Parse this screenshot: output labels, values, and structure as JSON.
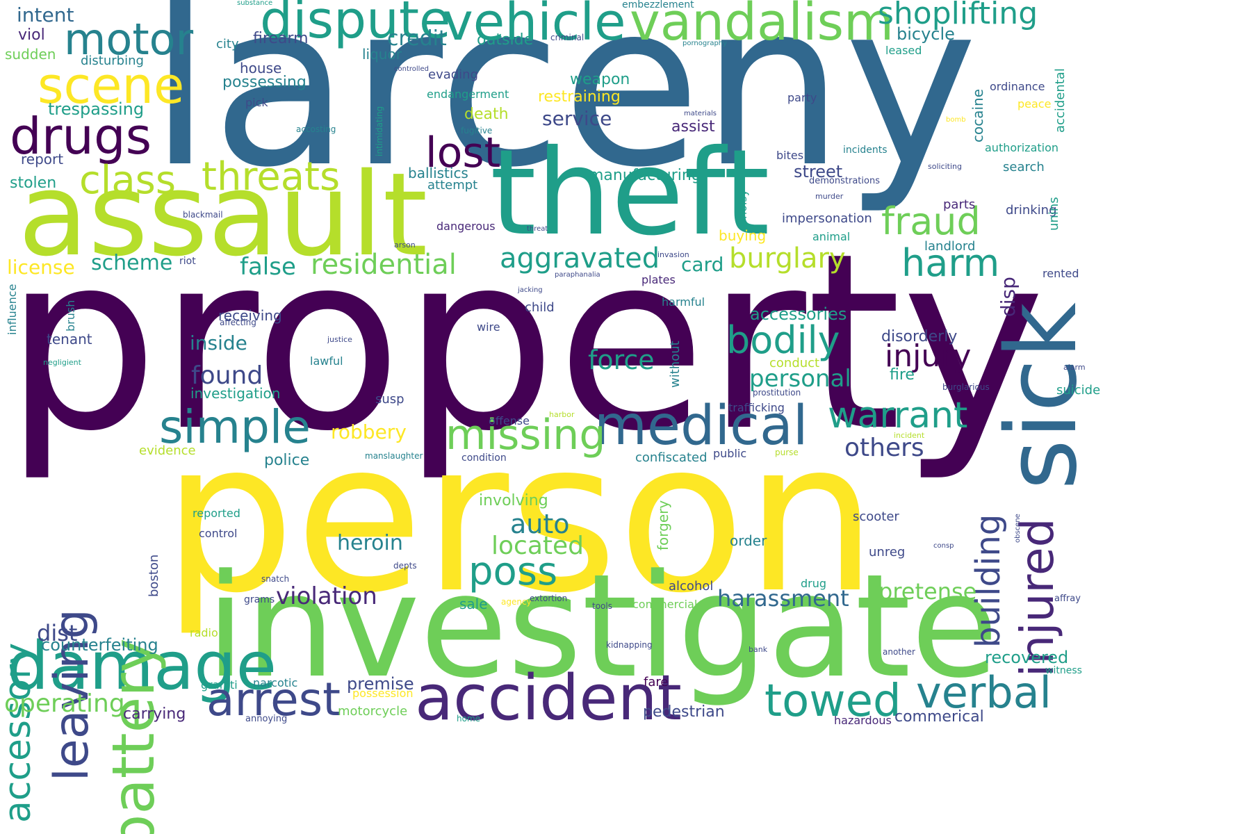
{
  "palette": {
    "dark_purple": "#440154",
    "purple": "#482878",
    "indigo": "#3e4989",
    "blue": "#31688e",
    "teal": "#26828e",
    "green_teal": "#1f9e89",
    "green": "#35b779",
    "lime": "#6ece58",
    "yellow_green": "#b5de2b",
    "yellow": "#fde725"
  },
  "words": [
    "larceny",
    "property",
    "person",
    "investigate",
    "assault",
    "theft",
    "sick",
    "damage",
    "accident",
    "dispute",
    "vehicle",
    "vandalism",
    "shoplifting",
    "motor",
    "scene",
    "drugs",
    "class",
    "threats",
    "lost",
    "simple",
    "medical",
    "missing",
    "poss",
    "battery",
    "leaving",
    "accessory",
    "arrest",
    "towed",
    "verbal",
    "fraud",
    "harm",
    "bodily",
    "injury",
    "injured",
    "building",
    "warrant",
    "others",
    "aggravated",
    "burglary",
    "residential",
    "false",
    "license",
    "scheme",
    "card",
    "personal",
    "found",
    "inside",
    "force",
    "auto",
    "located",
    "heroin",
    "violation",
    "harassment",
    "pretense",
    "dist",
    "counterfeiting",
    "operating",
    "carrying",
    "premise",
    "possession",
    "motorcycle",
    "pedestrian",
    "commerical",
    "hazardous",
    "recovered",
    "fare",
    "narcotic",
    "graffiti",
    "annoying",
    "home",
    "intent",
    "viol",
    "sudden",
    "disturbing",
    "trespassing",
    "report",
    "stolen",
    "city",
    "house",
    "possessing",
    "pick",
    "firearm",
    "credit",
    "outside",
    "liquor",
    "evading",
    "endangerment",
    "restraining",
    "death",
    "weapon",
    "service",
    "assist",
    "ballistics",
    "attempt",
    "manufacturing",
    "street",
    "bites",
    "incidents",
    "demonstrations",
    "party",
    "ordinance",
    "peace",
    "accidental",
    "authorization",
    "search",
    "soliciting",
    "cocaine",
    "drinking",
    "unins",
    "landlord",
    "rented",
    "parts",
    "impersonation",
    "animal",
    "buying",
    "dangerous",
    "blackmail",
    "riot",
    "arson",
    "invasion",
    "threat",
    "murder",
    "jacking",
    "paraphanalia",
    "plates",
    "harmful",
    "child",
    "receiving",
    "affecting",
    "tenant",
    "influence",
    "brush",
    "negligient",
    "justice",
    "lawful",
    "wire",
    "accessories",
    "disorderly",
    "fire",
    "conduct",
    "trafficking",
    "prostitution",
    "burglarious",
    "suicide",
    "alarm",
    "incident",
    "harbor",
    "offense",
    "evidence",
    "police",
    "confiscated",
    "public",
    "purse",
    "condition",
    "manslaughter",
    "investigation",
    "susp",
    "involving",
    "reported",
    "control",
    "forgery",
    "order",
    "scooter",
    "unreg",
    "depts",
    "boston",
    "snatch",
    "grams",
    "sale",
    "agency",
    "extortion",
    "tools",
    "commercial",
    "alcohol",
    "drug",
    "radio",
    "kidnapping",
    "bank",
    "another",
    "witness",
    "affray",
    "consp",
    "obscene",
    "criminal",
    "embezzlement",
    "substance",
    "pornography",
    "leased",
    "controlled",
    "materials",
    "fugitive",
    "accosting",
    "intimidating",
    "bomb",
    "without",
    "noisy",
    "disp",
    "bicycle",
    "robbery"
  ]
}
